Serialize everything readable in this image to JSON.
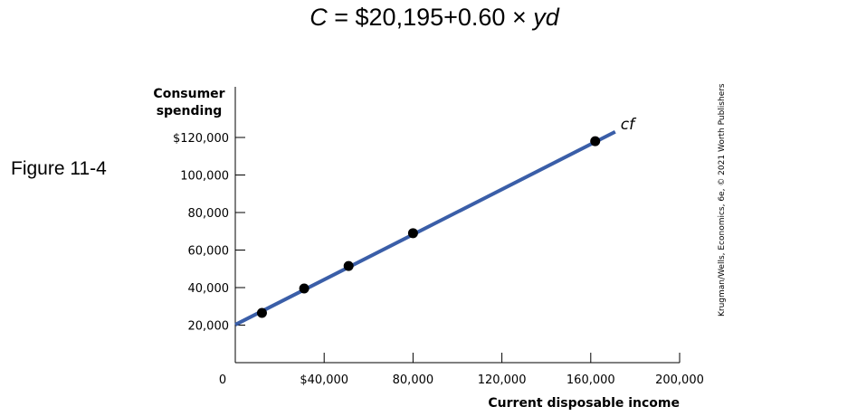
{
  "equation": {
    "var_c": "C",
    "middle": " = $20,195+0.60 × ",
    "var_yd": "yd"
  },
  "figure_label": "Figure 11-4",
  "credit": "Krugman/Wells, Economics, 6e, © 2021 Worth Publishers",
  "colors": {
    "line": "#3a5ea8",
    "point": "#000000",
    "axis": "#000000"
  },
  "chart_data": {
    "type": "line",
    "ylabel_lines": [
      "Consumer",
      "spending"
    ],
    "xlabel": "Current disposable income",
    "origin_label": "0",
    "xlim": [
      0,
      200000
    ],
    "ylim": [
      0,
      120000
    ],
    "x_ticks": [
      {
        "value": 40000,
        "label": "$40,000"
      },
      {
        "value": 80000,
        "label": "80,000"
      },
      {
        "value": 120000,
        "label": "120,000"
      },
      {
        "value": 160000,
        "label": "160,000"
      },
      {
        "value": 200000,
        "label": "200,000"
      }
    ],
    "y_ticks": [
      {
        "value": 20000,
        "label": "20,000"
      },
      {
        "value": 40000,
        "label": "40,000"
      },
      {
        "value": 60000,
        "label": "60,000"
      },
      {
        "value": 80000,
        "label": "80,000"
      },
      {
        "value": 100000,
        "label": "100,000"
      },
      {
        "value": 120000,
        "label": "$120,000"
      }
    ],
    "series": [
      {
        "name": "cf",
        "line": {
          "x": [
            0,
            171000
          ],
          "y": [
            20195,
            123000
          ]
        },
        "points": [
          {
            "x": 12000,
            "y": 26500
          },
          {
            "x": 31000,
            "y": 39500
          },
          {
            "x": 51000,
            "y": 51500
          },
          {
            "x": 80000,
            "y": 69000
          },
          {
            "x": 162000,
            "y": 118000
          }
        ]
      }
    ]
  }
}
